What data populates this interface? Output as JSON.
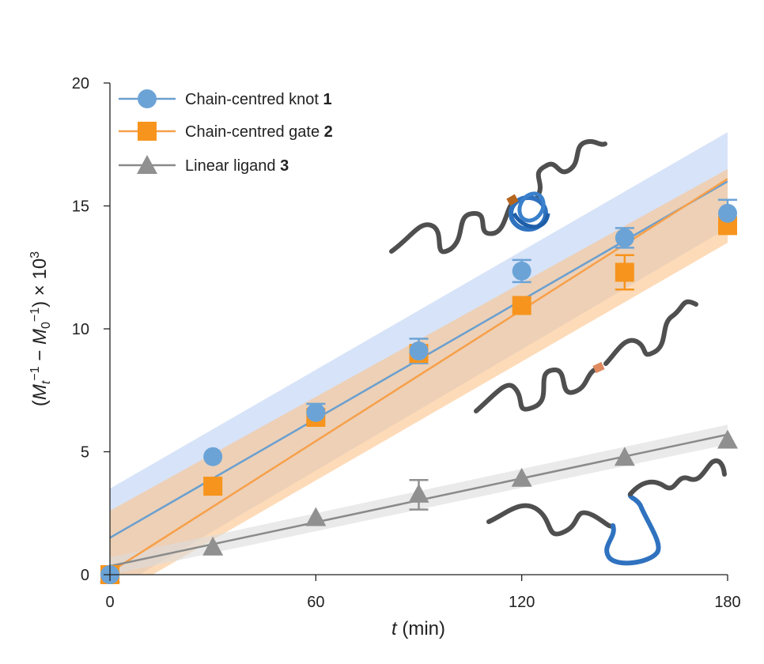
{
  "chart_data": {
    "type": "scatter",
    "xlabel_italic": "t",
    "xlabel_rest": " (min)",
    "ylabel_parts": {
      "open": "(",
      "M": "M",
      "sub_t": "t",
      "sup_minus1": "−1",
      "minus": " − ",
      "sub_0": "0",
      "close": ")",
      "times": " × 10",
      "sup_3": "3"
    },
    "xlim": [
      0,
      180
    ],
    "ylim": [
      0,
      20
    ],
    "xticks": [
      "0",
      "60",
      "120",
      "180"
    ],
    "yticks": [
      "0",
      "5",
      "10",
      "15",
      "20"
    ],
    "legend_position": "top-left",
    "series": [
      {
        "name_text": "Chain-centred knot ",
        "name_num": "1",
        "color": "#6ba3d6",
        "line_color": "#6a9fcf",
        "band_color": "#c9d9f5",
        "marker": "circle",
        "x": [
          0,
          30,
          60,
          90,
          120,
          150,
          180
        ],
        "y": [
          0.0,
          4.8,
          6.6,
          9.1,
          12.35,
          13.7,
          14.7
        ],
        "err": [
          0,
          0,
          0.35,
          0.5,
          0.45,
          0.4,
          0.55
        ],
        "fit": [
          [
            0,
            1.5
          ],
          [
            180,
            16.0
          ]
        ],
        "band_upper": [
          [
            0,
            3.5
          ],
          [
            180,
            18.0
          ]
        ],
        "band_lower": [
          [
            0,
            -0.7
          ],
          [
            180,
            14.1
          ]
        ]
      },
      {
        "name_text": "Chain-centred gate ",
        "name_num": "2",
        "color": "#f7941d",
        "line_color": "#f7a04a",
        "band_color": "#fbc38a",
        "marker": "square",
        "x": [
          0,
          30,
          60,
          90,
          120,
          150,
          180
        ],
        "y": [
          0.0,
          3.6,
          6.4,
          9.0,
          10.95,
          12.3,
          14.2
        ],
        "err": [
          0,
          0,
          0,
          0,
          0,
          0.7,
          0.2
        ],
        "fit": [
          [
            0,
            0.1
          ],
          [
            180,
            16.1
          ]
        ],
        "band_upper": [
          [
            0,
            2.6
          ],
          [
            180,
            16.5
          ]
        ],
        "band_lower": [
          [
            0,
            -1.0
          ],
          [
            180,
            13.5
          ]
        ]
      },
      {
        "name_text": "Linear ligand ",
        "name_num": "3",
        "color": "#909090",
        "line_color": "#8a8a8a",
        "band_color": "#dcdcdc",
        "marker": "triangle",
        "x": [
          0,
          30,
          60,
          90,
          120,
          150,
          180
        ],
        "y": [
          0.0,
          1.1,
          2.3,
          3.25,
          3.9,
          4.75,
          5.45
        ],
        "err": [
          0,
          0,
          0,
          0.6,
          0,
          0,
          0
        ],
        "fit": [
          [
            0,
            0.35
          ],
          [
            180,
            5.7
          ]
        ],
        "band_upper": [
          [
            0,
            0.7
          ],
          [
            180,
            6.1
          ]
        ],
        "band_lower": [
          [
            0,
            0.0
          ],
          [
            180,
            5.3
          ]
        ]
      }
    ]
  },
  "illustrations": [
    {
      "name": "knot-molecule-illustration",
      "colors": {
        "chain": "#555555",
        "knot": "#2f72bf",
        "gate": "#b5651d"
      }
    },
    {
      "name": "gate-molecule-illustration",
      "colors": {
        "chain": "#555555",
        "gate": "#e08a60"
      }
    },
    {
      "name": "linear-molecule-illustration",
      "colors": {
        "chain": "#555555",
        "center": "#2f72bf"
      }
    }
  ]
}
